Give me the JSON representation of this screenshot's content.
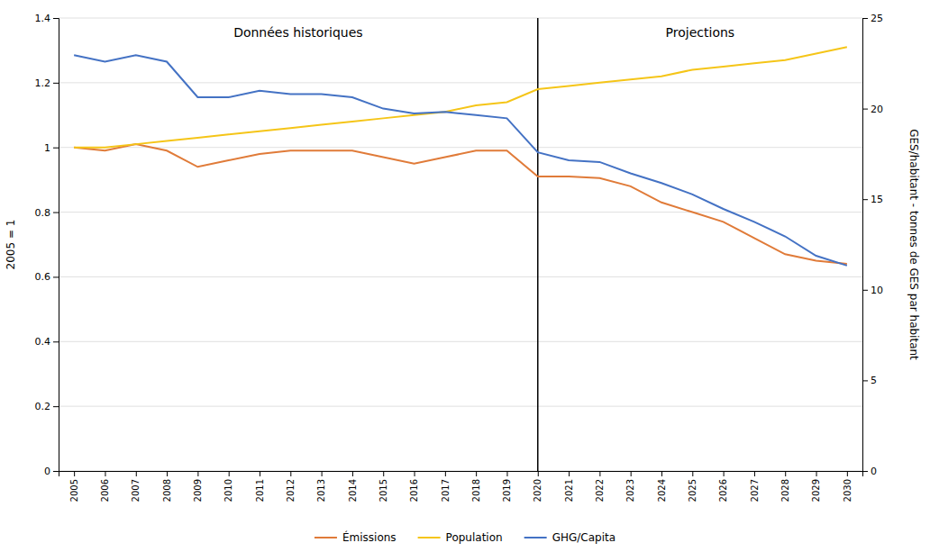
{
  "chart_data": {
    "type": "line",
    "x": [
      2005,
      2006,
      2007,
      2008,
      2009,
      2010,
      2011,
      2012,
      2013,
      2014,
      2015,
      2016,
      2017,
      2018,
      2019,
      2020,
      2021,
      2022,
      2023,
      2024,
      2025,
      2026,
      2027,
      2028,
      2029,
      2030
    ],
    "series": [
      {
        "name": "Émissions",
        "color": "#E07B39",
        "values": [
          1.0,
          0.99,
          1.01,
          0.99,
          0.94,
          0.96,
          0.98,
          0.99,
          0.99,
          0.99,
          0.97,
          0.95,
          0.97,
          0.99,
          0.99,
          0.91,
          0.91,
          0.905,
          0.88,
          0.83,
          0.8,
          0.77,
          0.72,
          0.67,
          0.65,
          0.64
        ]
      },
      {
        "name": "Population",
        "color": "#F5C518",
        "values": [
          1.0,
          1.0,
          1.01,
          1.02,
          1.03,
          1.04,
          1.05,
          1.06,
          1.07,
          1.08,
          1.09,
          1.1,
          1.11,
          1.13,
          1.14,
          1.18,
          1.19,
          1.2,
          1.21,
          1.22,
          1.24,
          1.25,
          1.26,
          1.27,
          1.29,
          1.31
        ]
      },
      {
        "name": "GHG/Capita",
        "color": "#4472C4",
        "values": [
          1.285,
          1.265,
          1.285,
          1.265,
          1.155,
          1.155,
          1.175,
          1.165,
          1.165,
          1.155,
          1.12,
          1.105,
          1.11,
          1.1,
          1.09,
          0.985,
          0.96,
          0.955,
          0.92,
          0.89,
          0.855,
          0.81,
          0.77,
          0.725,
          0.665,
          0.635
        ]
      }
    ],
    "xlim": [
      2004.5,
      2030.5
    ],
    "xticks": [
      2005,
      2006,
      2007,
      2008,
      2009,
      2010,
      2011,
      2012,
      2013,
      2014,
      2015,
      2016,
      2017,
      2018,
      2019,
      2020,
      2021,
      2022,
      2023,
      2024,
      2025,
      2026,
      2027,
      2028,
      2029,
      2030
    ],
    "ylim": [
      0,
      1.4
    ],
    "yticks": [
      0,
      0.2,
      0.4,
      0.6,
      0.8,
      1,
      1.2,
      1.4
    ],
    "y2lim": [
      0,
      25
    ],
    "y2ticks": [
      0,
      5,
      10,
      15,
      20,
      25
    ],
    "ylabel": "2005 = 1",
    "y2label": "GES/habitant - tonnes de GES par habitant",
    "vlines": [
      2020
    ],
    "annotations": [
      {
        "text": "Données historiques",
        "x": 2012.25,
        "y": 1.37
      },
      {
        "text": "Projections",
        "x": 2025.25,
        "y": 1.37
      }
    ],
    "grid": true,
    "legend": "bottom"
  }
}
